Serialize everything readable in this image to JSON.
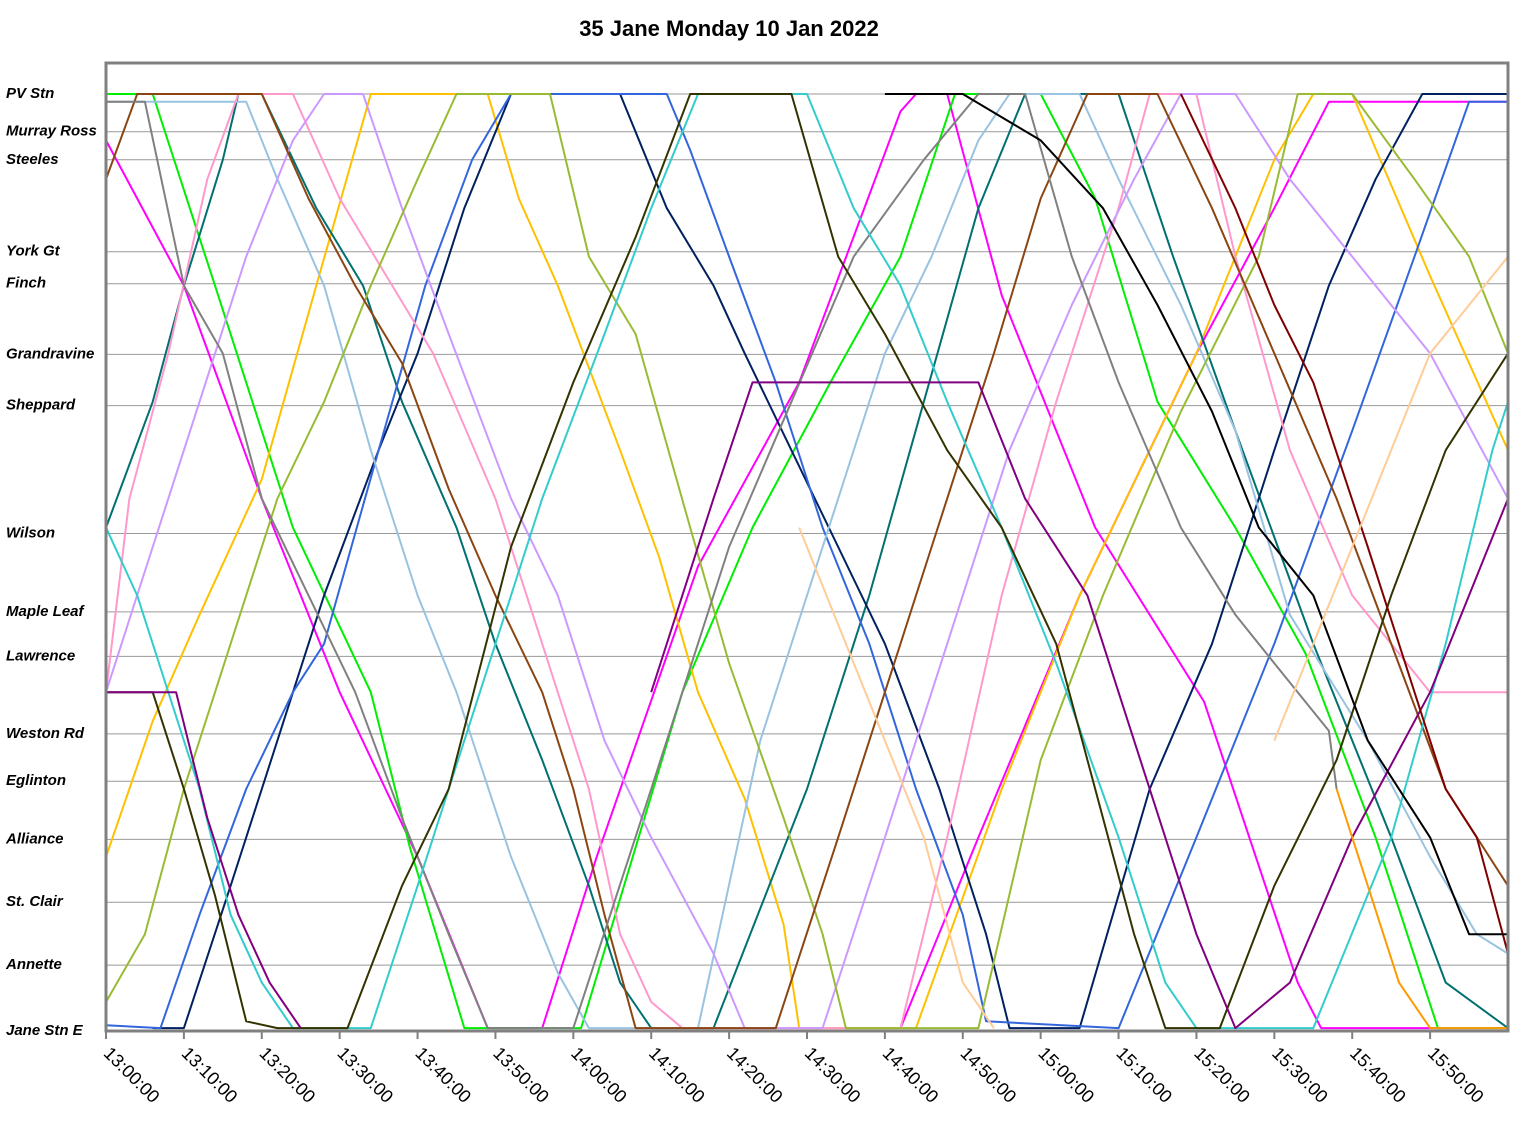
{
  "chart_data": {
    "type": "line",
    "title": "35 Jane Monday 10 Jan 2022",
    "grid": true,
    "xlim": [
      "13:00:00",
      "16:00:00"
    ],
    "xticks": [
      "13:00:00",
      "13:10:00",
      "13:20:00",
      "13:30:00",
      "13:40:00",
      "13:50:00",
      "14:00:00",
      "14:10:00",
      "14:20:00",
      "14:30:00",
      "14:40:00",
      "14:50:00",
      "15:00:00",
      "15:10:00",
      "15:20:00",
      "15:30:00",
      "15:40:00",
      "15:50:00"
    ],
    "ylim": [
      0,
      100
    ],
    "yticks": [
      {
        "value": 96.8,
        "label": "PV Stn"
      },
      {
        "value": 92.9,
        "label": "Murray Ross"
      },
      {
        "value": 90.0,
        "label": "Steeles"
      },
      {
        "value": 80.5,
        "label": "York Gt"
      },
      {
        "value": 77.2,
        "label": "Finch"
      },
      {
        "value": 69.9,
        "label": "Grandravine"
      },
      {
        "value": 64.6,
        "label": "Sheppard"
      },
      {
        "value": 51.4,
        "label": "Wilson"
      },
      {
        "value": 43.3,
        "label": "Maple Leaf"
      },
      {
        "value": 38.7,
        "label": "Lawrence"
      },
      {
        "value": 30.7,
        "label": "Weston Rd"
      },
      {
        "value": 25.8,
        "label": "Eglinton"
      },
      {
        "value": 19.8,
        "label": "Alliance"
      },
      {
        "value": 13.3,
        "label": "St. Clair"
      },
      {
        "value": 6.8,
        "label": "Annette"
      },
      {
        "value": 0,
        "label": "Jane Stn E"
      }
    ],
    "series": [
      {
        "color": "#ff00ff",
        "x": [
          "13:00:00",
          "13:10:00",
          "13:20:00",
          "13:30:00",
          "13:40:00",
          "13:49:00",
          "13:56:00",
          "14:03:00",
          "14:16:00",
          "14:29:00",
          "14:42:00",
          "14:44:00",
          "14:48:00",
          "14:55:00",
          "15:07:00",
          "15:21:00",
          "15:33:00",
          "15:36:00",
          "16:00:00"
        ],
        "values": [
          92,
          77,
          55,
          35,
          18,
          0.3,
          0.3,
          18,
          48,
          67,
          95,
          96.8,
          96.8,
          76,
          52,
          34,
          5,
          0.3,
          0.3
        ]
      },
      {
        "color": "#ff00ff",
        "x": [
          "14:42:00",
          "14:52:00",
          "15:05:00",
          "15:20:00",
          "15:30:00",
          "15:37:00",
          "16:00:00"
        ],
        "values": [
          0.3,
          20,
          45,
          70,
          85,
          96,
          96
        ]
      },
      {
        "color": "#00ee00",
        "x": [
          "13:00:00",
          "13:06:00",
          "13:14:00",
          "13:24:00",
          "13:34:00",
          "13:39:00",
          "13:46:00",
          "14:01:00",
          "14:14:00",
          "14:23:00",
          "14:33:00",
          "14:42:00",
          "14:49:00",
          "15:00:00",
          "15:07:00",
          "15:15:00",
          "15:25:00",
          "15:34:00",
          "15:43:00",
          "15:51:00",
          "16:00:00"
        ],
        "values": [
          96.8,
          96.8,
          77,
          52,
          35,
          19,
          0.3,
          0.3,
          35,
          52,
          67,
          80,
          96.8,
          96.8,
          86,
          65,
          52,
          39,
          20,
          0.3,
          0.3
        ]
      },
      {
        "color": "#ffc000",
        "x": [
          "13:00:00",
          "13:06:00",
          "13:12:00",
          "13:20:00",
          "13:27:00",
          "13:34:00",
          "13:49:00",
          "13:53:00",
          "13:58:00",
          "14:06:00",
          "14:11:00",
          "14:16:00",
          "14:22:00",
          "14:27:00",
          "14:29:00",
          "14:44:00",
          "14:55:00",
          "15:05:00",
          "15:20:00",
          "15:30:00",
          "15:35:00",
          "15:40:00",
          "15:50:00",
          "16:00:00"
        ],
        "values": [
          18,
          32,
          43,
          57,
          77,
          96.8,
          96.8,
          86,
          77,
          60,
          49,
          35,
          24,
          11,
          0.3,
          0.3,
          25,
          45,
          70,
          90,
          96.8,
          96.8,
          78,
          60
        ]
      },
      {
        "color": "#007070",
        "x": [
          "13:00:00",
          "13:06:00",
          "13:10:00",
          "13:15:00",
          "13:17:00",
          "13:20:00",
          "13:27:00",
          "13:33:00",
          "13:38:00",
          "13:45:00",
          "13:50:00",
          "13:56:00",
          "14:02:00",
          "14:06:00",
          "14:10:00",
          "14:18:00",
          "14:30:00",
          "14:38:00",
          "14:45:00",
          "14:52:00",
          "14:58:00",
          "15:10:00",
          "15:17:00",
          "15:25:00",
          "15:35:00",
          "15:45:00",
          "15:52:00",
          "16:00:00"
        ],
        "values": [
          52,
          65,
          77,
          90,
          96.8,
          96.8,
          85,
          77,
          65,
          52,
          40,
          28,
          15,
          5,
          0.3,
          0.3,
          25,
          45,
          65,
          85,
          96.8,
          96.8,
          80,
          62,
          40,
          20,
          5,
          0.3
        ]
      },
      {
        "color": "#002060",
        "x": [
          "13:06:00",
          "13:10:00",
          "13:16:00",
          "13:22:00",
          "13:28:00",
          "13:35:00",
          "13:40:00",
          "13:46:00",
          "13:52:00",
          "14:06:00",
          "14:12:00",
          "14:18:00",
          "14:22:00",
          "14:28:00",
          "14:34:00",
          "14:40:00",
          "14:47:00",
          "14:53:00",
          "14:56:00",
          "15:05:00",
          "15:14:00",
          "15:22:00",
          "15:30:00",
          "15:37:00",
          "15:43:00",
          "15:49:00",
          "16:00:00"
        ],
        "values": [
          0.3,
          0.3,
          15,
          30,
          45,
          60,
          70,
          85,
          96.8,
          96.8,
          85,
          77,
          70,
          60,
          50,
          40,
          25,
          10,
          0.3,
          0.3,
          25,
          40,
          60,
          77,
          88,
          96.8,
          96.8
        ]
      },
      {
        "color": "#3366dd",
        "x": [
          "13:00:00",
          "13:07:00",
          "13:12:00",
          "13:18:00",
          "13:24:00",
          "13:28:00",
          "13:35:00",
          "13:41:00",
          "13:47:00",
          "13:52:00",
          "14:12:00",
          "14:15:00",
          "14:20:00",
          "14:26:00",
          "14:32:00",
          "14:38:00",
          "14:44:00",
          "14:50:00",
          "14:53:00",
          "15:10:00",
          "15:20:00",
          "15:30:00",
          "15:40:00",
          "15:48:00",
          "15:55:00",
          "16:00:00"
        ],
        "values": [
          0.6,
          0.3,
          12,
          25,
          35,
          40,
          60,
          77,
          90,
          96.8,
          96.8,
          91,
          80,
          67,
          52,
          40,
          25,
          12,
          1,
          0.3,
          20,
          40,
          62,
          80,
          96,
          96
        ]
      },
      {
        "color": "#99c3e0",
        "x": [
          "13:00:00",
          "13:18:00",
          "13:22:00",
          "13:28:00",
          "13:34:00",
          "13:40:00",
          "13:45:00",
          "13:52:00",
          "13:58:00",
          "14:02:00",
          "14:16:00",
          "14:24:00",
          "14:32:00",
          "14:40:00",
          "14:46:00",
          "14:52:00",
          "14:56:00",
          "15:05:00",
          "15:10:00",
          "15:18:00",
          "15:25:00",
          "15:32:00",
          "15:42:00",
          "15:50:00",
          "15:56:00",
          "16:00:00"
        ],
        "values": [
          96,
          96,
          88,
          77,
          60,
          45,
          35,
          18,
          6,
          0.3,
          0.3,
          30,
          50,
          70,
          80,
          92,
          96.8,
          96.8,
          88,
          75,
          62,
          43,
          30,
          18,
          10,
          8
        ]
      },
      {
        "color": "#ff99cc",
        "x": [
          "13:00:00",
          "13:03:00",
          "13:08:00",
          "13:13:00",
          "13:17:00",
          "13:24:00",
          "13:30:00",
          "13:36:00",
          "13:42:00",
          "13:50:00",
          "13:56:00",
          "14:02:00",
          "14:06:00",
          "14:10:00",
          "14:14:00",
          "14:30:00",
          "14:42:00",
          "14:48:00",
          "14:55:00",
          "15:02:00",
          "15:10:00",
          "15:14:00",
          "15:20:00",
          "15:25:00",
          "15:32:00",
          "15:40:00",
          "15:50:00",
          "16:00:00"
        ],
        "values": [
          35,
          55,
          70,
          88,
          96.8,
          96.8,
          86,
          78,
          70,
          55,
          40,
          25,
          10,
          3,
          0.3,
          0.3,
          0.3,
          20,
          45,
          65,
          85,
          96.8,
          96.8,
          80,
          60,
          45,
          35,
          35
        ]
      },
      {
        "color": "#cc99ff",
        "x": [
          "13:00:00",
          "13:06:00",
          "13:12:00",
          "13:18:00",
          "13:24:00",
          "13:28:00",
          "13:33:00",
          "13:38:00",
          "13:44:00",
          "13:52:00",
          "13:58:00",
          "14:04:00",
          "14:10:00",
          "14:18:00",
          "14:22:00",
          "14:32:00",
          "14:40:00",
          "14:48:00",
          "14:56:00",
          "15:04:00",
          "15:12:00",
          "15:18:00",
          "15:25:00",
          "15:32:00",
          "15:40:00",
          "15:50:00",
          "16:00:00"
        ],
        "values": [
          35,
          50,
          65,
          80,
          92,
          96.8,
          96.8,
          85,
          72,
          55,
          45,
          30,
          20,
          8,
          0.3,
          0.3,
          20,
          40,
          60,
          75,
          88,
          96.8,
          96.8,
          88,
          80,
          70,
          55
        ]
      },
      {
        "color": "#99bb33",
        "x": [
          "13:00:00",
          "13:05:00",
          "13:10:00",
          "13:16:00",
          "13:22:00",
          "13:28:00",
          "13:34:00",
          "13:40:00",
          "13:45:00",
          "13:57:00",
          "14:02:00",
          "14:08:00",
          "14:15:00",
          "14:20:00",
          "14:27:00",
          "14:32:00",
          "14:35:00",
          "14:52:00",
          "15:00:00",
          "15:08:00",
          "15:18:00",
          "15:28:00",
          "15:33:00",
          "15:40:00",
          "15:48:00",
          "15:55:00",
          "16:00:00"
        ],
        "values": [
          3,
          10,
          25,
          40,
          55,
          65,
          77,
          88,
          96.8,
          96.8,
          80,
          72,
          52,
          38,
          22,
          10,
          0.3,
          0.3,
          28,
          45,
          64,
          80,
          96.8,
          96.8,
          88,
          80,
          70
        ]
      },
      {
        "color": "#8b4513",
        "x": [
          "13:00:00",
          "13:04:00",
          "13:20:00",
          "13:26:00",
          "13:32:00",
          "13:38:00",
          "13:44:00",
          "13:50:00",
          "13:56:00",
          "14:00:00",
          "14:04:00",
          "14:08:00",
          "14:26:00",
          "14:34:00",
          "14:40:00",
          "14:46:00",
          "14:54:00",
          "15:00:00",
          "15:06:00",
          "15:15:00",
          "15:22:00",
          "15:30:00",
          "15:38:00",
          "15:45:00",
          "15:52:00",
          "16:00:00"
        ],
        "values": [
          88,
          96.8,
          96.8,
          86,
          77,
          69,
          56,
          45,
          35,
          25,
          12,
          0.3,
          0.3,
          20,
          35,
          50,
          70,
          86,
          96.8,
          96.8,
          85,
          70,
          55,
          40,
          25,
          15
        ]
      },
      {
        "color": "#808080",
        "x": [
          "13:00:00",
          "13:05:00",
          "13:10:00",
          "13:15:00",
          "13:20:00",
          "13:26:00",
          "13:32:00",
          "13:38:00",
          "13:44:00",
          "13:49:00",
          "14:00:00",
          "14:10:00",
          "14:20:00",
          "14:28:00",
          "14:36:00",
          "14:45:00",
          "14:52:00",
          "14:58:00",
          "15:04:00",
          "15:10:00",
          "15:18:00",
          "15:25:00",
          "15:30:00",
          "15:37:00",
          "15:38:00"
        ],
        "values": [
          96,
          96,
          77,
          70,
          55,
          45,
          35,
          22,
          10,
          0.3,
          0.3,
          25,
          50,
          65,
          80,
          90,
          96.8,
          96.8,
          80,
          67,
          52,
          43,
          38,
          31,
          25
        ]
      },
      {
        "color": "#33cccc",
        "x": [
          "13:00:00",
          "13:04:00",
          "13:08:00",
          "13:12:00",
          "13:16:00",
          "13:20:00",
          "13:24:00",
          "13:34:00",
          "13:40:00",
          "13:48:00",
          "13:56:00",
          "14:04:00",
          "14:10:00",
          "14:16:00",
          "14:30:00",
          "14:36:00",
          "14:42:00",
          "14:48:00",
          "14:55:00",
          "15:02:00",
          "15:10:00",
          "15:16:00",
          "15:20:00",
          "15:35:00",
          "15:45:00",
          "15:52:00",
          "15:58:00",
          "16:00:00"
        ],
        "values": [
          52,
          45,
          35,
          25,
          12,
          5,
          0.3,
          0.3,
          15,
          35,
          55,
          72,
          85,
          96.8,
          96.8,
          85,
          77,
          65,
          52,
          38,
          20,
          5,
          0.3,
          0.3,
          20,
          40,
          60,
          65
        ]
      },
      {
        "color": "#333300",
        "x": [
          "13:00:00",
          "13:06:00",
          "13:10:00",
          "13:14:00",
          "13:18:00",
          "13:22:00",
          "13:31:00",
          "13:38:00",
          "13:44:00",
          "13:52:00",
          "14:00:00",
          "14:08:00",
          "14:15:00",
          "14:28:00",
          "14:34:00",
          "14:40:00",
          "14:48:00",
          "14:55:00",
          "15:02:00",
          "15:07:00",
          "15:12:00",
          "15:16:00",
          "15:23:00",
          "15:30:00",
          "15:38:00",
          "15:45:00",
          "15:52:00",
          "16:00:00"
        ],
        "values": [
          35,
          35,
          25,
          14,
          1,
          0.3,
          0.3,
          15,
          25,
          50,
          67,
          82,
          96.8,
          96.8,
          80,
          72,
          60,
          52,
          40,
          25,
          10,
          0.3,
          0.3,
          15,
          28,
          45,
          60,
          70
        ]
      },
      {
        "color": "#800080",
        "x": [
          "13:00:00",
          "13:09:00",
          "13:13:00",
          "13:17:00",
          "13:21:00",
          "13:25:00",
          "13:45:00",
          "14:10:00",
          "14:18:00",
          "14:23:00",
          "14:30:00",
          "14:52:00",
          "14:58:00",
          "15:06:00",
          "15:12:00",
          "15:16:00",
          "15:20:00",
          "15:25:00",
          "15:32:00",
          "15:40:00",
          "15:50:00",
          "16:00:00"
        ],
        "values": [
          35,
          35,
          22,
          12,
          5,
          0.3,
          null,
          35,
          55,
          67,
          67,
          67,
          55,
          45,
          30,
          20,
          10,
          0.3,
          5,
          20,
          35,
          55
        ]
      },
      {
        "color": "#800000",
        "x": [
          "15:18:00",
          "15:25:00",
          "15:30:00",
          "15:35:00",
          "15:42:00",
          "15:48:00",
          "15:52:00",
          "15:56:00",
          "16:00:00"
        ],
        "values": [
          96.8,
          85,
          75,
          67,
          50,
          35,
          25,
          20,
          8
        ]
      },
      {
        "color": "#000000",
        "x": [
          "14:40:00",
          "14:50:00",
          "15:00:00",
          "15:08:00",
          "15:15:00",
          "15:22:00",
          "15:28:00",
          "15:35:00",
          "15:42:00",
          "15:50:00",
          "15:55:00",
          "16:00:00"
        ],
        "values": [
          96.8,
          96.8,
          92,
          85,
          75,
          64,
          52,
          45,
          30,
          20,
          10,
          10
        ]
      },
      {
        "color": "#ffcc99",
        "x": [
          "14:29:00",
          "14:35:00",
          "14:40:00",
          "14:45:00",
          "14:50:00",
          "14:54:00",
          "15:10:00",
          "15:30:00",
          "15:40:00",
          "15:50:00",
          "16:00:00"
        ],
        "values": [
          52,
          40,
          30,
          20,
          5,
          0.3,
          null,
          30,
          50,
          70,
          80
        ]
      },
      {
        "color": "#ff9900",
        "x": [
          "15:38:00",
          "15:42:00",
          "15:46:00",
          "15:50:00",
          "16:00:00"
        ],
        "values": [
          25,
          15,
          5,
          0.3,
          0.3
        ]
      }
    ]
  }
}
